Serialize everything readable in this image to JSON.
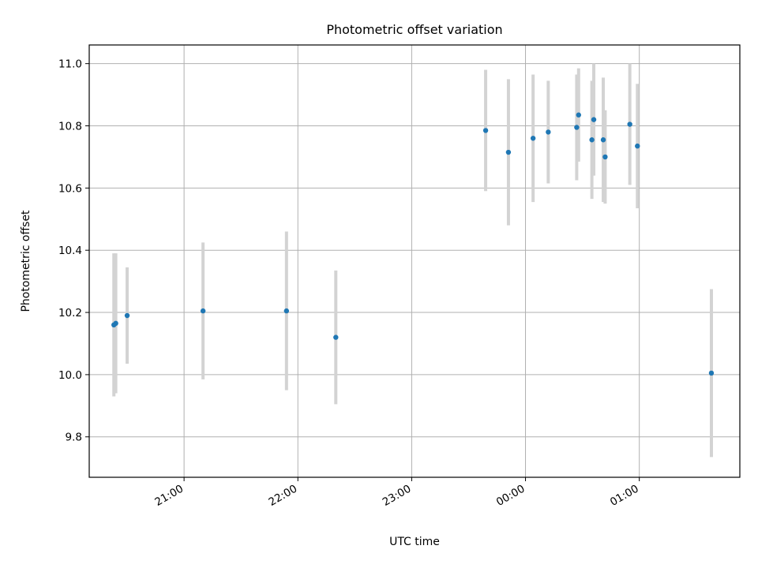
{
  "chart_data": {
    "type": "scatter",
    "title": "Photometric offset variation",
    "xlabel": "UTC time",
    "ylabel": "Photometric offset",
    "x_axis_type": "time",
    "x_tick_labels": [
      "21:00",
      "22:00",
      "23:00",
      "00:00",
      "01:00"
    ],
    "y_tick_labels": [
      "9.8",
      "10.0",
      "10.2",
      "10.4",
      "10.6",
      "10.8",
      "11.0"
    ],
    "xlim": [
      "20:10",
      "01:53"
    ],
    "ylim": [
      9.67,
      11.06
    ],
    "grid": true,
    "marker_color": "#1f77b4",
    "errorbar_color": "#d3d3d3",
    "series": [
      {
        "points": [
          {
            "x": "20:23",
            "y": 10.16,
            "yerr": 0.23
          },
          {
            "x": "20:24",
            "y": 10.165,
            "yerr": 0.225
          },
          {
            "x": "20:30",
            "y": 10.19,
            "yerr": 0.155
          },
          {
            "x": "21:10",
            "y": 10.205,
            "yerr": 0.22
          },
          {
            "x": "21:54",
            "y": 10.205,
            "yerr": 0.255
          },
          {
            "x": "22:20",
            "y": 10.12,
            "yerr": 0.215
          },
          {
            "x": "23:39",
            "y": 10.785,
            "yerr": 0.195
          },
          {
            "x": "23:51",
            "y": 10.715,
            "yerr": 0.235
          },
          {
            "x": "00:04",
            "y": 10.76,
            "yerr": 0.205
          },
          {
            "x": "00:12",
            "y": 10.78,
            "yerr": 0.165
          },
          {
            "x": "00:27",
            "y": 10.795,
            "yerr": 0.17
          },
          {
            "x": "00:28",
            "y": 10.835,
            "yerr": 0.15
          },
          {
            "x": "00:35",
            "y": 10.755,
            "yerr": 0.19
          },
          {
            "x": "00:36",
            "y": 10.82,
            "yerr": 0.18
          },
          {
            "x": "00:41",
            "y": 10.755,
            "yerr": 0.2
          },
          {
            "x": "00:42",
            "y": 10.7,
            "yerr": 0.15
          },
          {
            "x": "00:55",
            "y": 10.805,
            "yerr": 0.195
          },
          {
            "x": "00:59",
            "y": 10.735,
            "yerr": 0.2
          },
          {
            "x": "01:38",
            "y": 10.005,
            "yerr": 0.27
          }
        ]
      }
    ]
  }
}
